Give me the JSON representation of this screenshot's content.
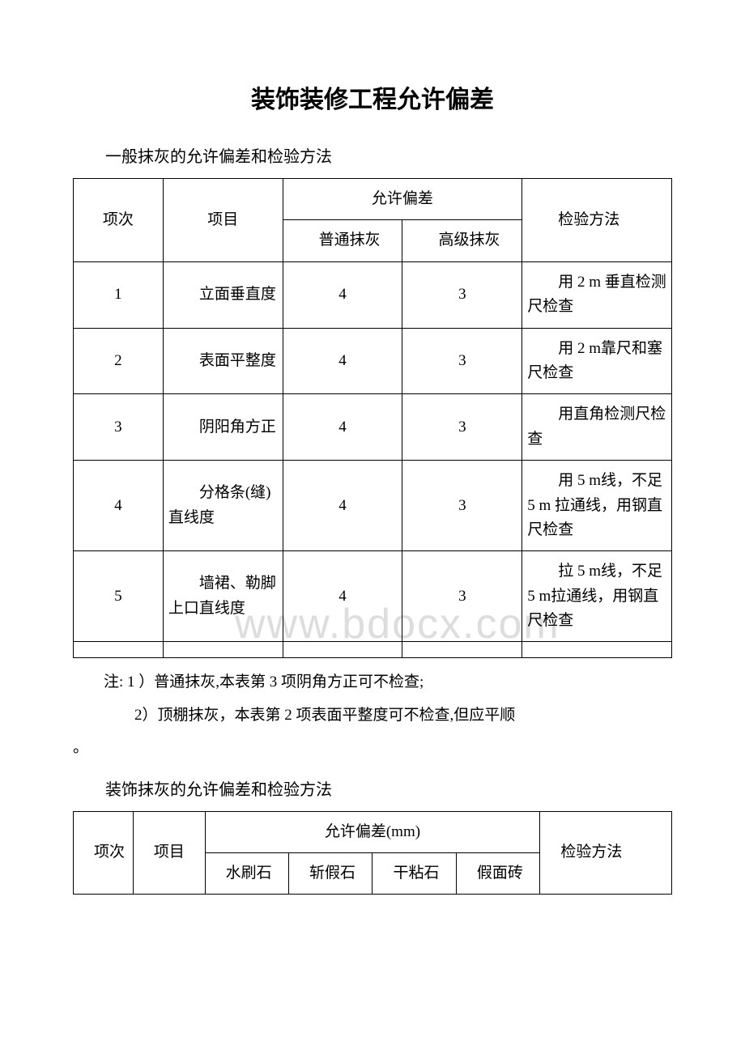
{
  "title": "装饰装修工程允许偏差",
  "section1": {
    "subtitle": "一般抹灰的允许偏差和检验方法",
    "header": {
      "col1": "项次",
      "col2": "项目",
      "tol": "允许偏差",
      "sub1": "　　普通抹灰",
      "sub2": "　　高级抹灰",
      "col5": "　　检验方法"
    },
    "rows": [
      {
        "n": "1",
        "item": "　　立面垂直度",
        "v1": "4",
        "v2": "3",
        "method": "　　用 2 m 垂直检测尺检查"
      },
      {
        "n": "2",
        "item": "　　表面平整度",
        "v1": "4",
        "v2": "3",
        "method": "　　用 2 m靠尺和塞尺检查"
      },
      {
        "n": "3",
        "item": "　　阴阳角方正",
        "v1": "4",
        "v2": "3",
        "method": "　　用直角检测尺检查"
      },
      {
        "n": "4",
        "item": "　　分格条(缝)直线度",
        "v1": "4",
        "v2": "3",
        "method": "　　用 5 m线，不足 5 m 拉通线，用钢直尺检查"
      },
      {
        "n": "5",
        "item": "　　墙裙、勒脚上口直线度",
        "v1": "4",
        "v2": "3",
        "method": "　　拉 5 m线，不足 5 m拉通线，用钢直尺检查"
      }
    ],
    "notes": {
      "n1": "注: 1 ）普通抹灰,本表第 3 项阴角方正可不检查;",
      "n2": "2）顶棚抹灰，本表第 2 项表面平整度可不检查,但应平顺",
      "n3": "。"
    }
  },
  "section2": {
    "subtitle": "装饰抹灰的允许偏差和检验方法",
    "header": {
      "col1": "　项次",
      "col2": "　项目",
      "tol": "允许偏差(mm)",
      "sub1": "　水刷石",
      "sub2": "　斩假石",
      "sub3": "　干粘石",
      "sub4": "　假面砖",
      "col7": "　检验方法"
    }
  },
  "watermark": "www.bdocx.com"
}
